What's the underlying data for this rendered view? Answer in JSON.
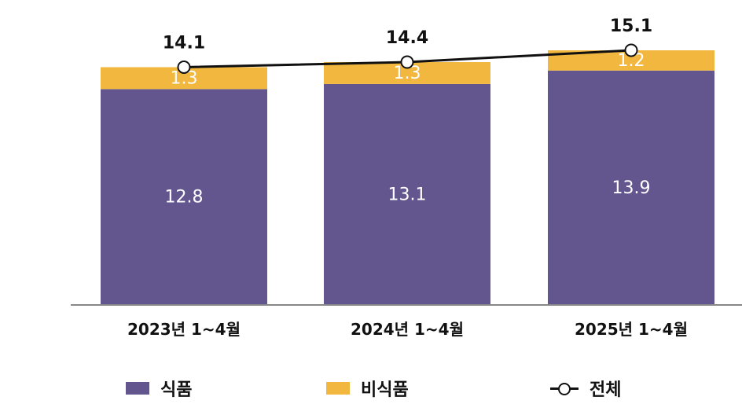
{
  "chart_data": {
    "type": "bar",
    "stacked": true,
    "categories": [
      "2023년 1~4월",
      "2024년 1~4월",
      "2025년 1~4월"
    ],
    "series": [
      {
        "name": "식품",
        "values": [
          12.8,
          13.1,
          13.9
        ],
        "color": "#63568f"
      },
      {
        "name": "비식품",
        "values": [
          1.3,
          1.3,
          1.2
        ],
        "color": "#f2b73f"
      }
    ],
    "line": {
      "name": "전체",
      "values": [
        14.1,
        14.4,
        15.1
      ],
      "color": "#111111"
    },
    "title": "",
    "xlabel": "",
    "ylabel": "",
    "ylim": [
      0,
      15.1
    ],
    "grid": false,
    "legend_position": "bottom"
  }
}
